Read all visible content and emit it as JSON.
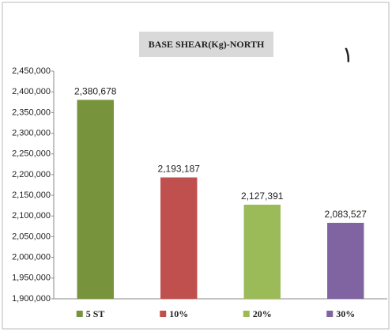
{
  "chart_data": {
    "type": "bar",
    "title": "BASE SHEAR(Kg)-NORTH",
    "annotation": "١",
    "categories": [
      "5 ST",
      "10%",
      "20%",
      "30%"
    ],
    "values": [
      2380678,
      2193187,
      2127391,
      2083527
    ],
    "value_labels": [
      "2,380,678",
      "2,193,187",
      "2,127,391",
      "2,083,527"
    ],
    "colors": [
      "#77933c",
      "#c0504d",
      "#9bbb59",
      "#8064a2"
    ],
    "ylim": [
      1900000,
      2450000
    ],
    "yticks": [
      {
        "value": 1900000,
        "label": "1,900,000"
      },
      {
        "value": 1950000,
        "label": "1,950,000"
      },
      {
        "value": 2000000,
        "label": "2,000,000"
      },
      {
        "value": 2050000,
        "label": "2,050,000"
      },
      {
        "value": 2100000,
        "label": "2,100,000"
      },
      {
        "value": 2150000,
        "label": "2,150,000"
      },
      {
        "value": 2200000,
        "label": "2,200,000"
      },
      {
        "value": 2250000,
        "label": "2,250,000"
      },
      {
        "value": 2300000,
        "label": "2,300,000"
      },
      {
        "value": 2350000,
        "label": "2,350,000"
      },
      {
        "value": 2400000,
        "label": "2,400,000"
      },
      {
        "value": 2450000,
        "label": "2,450,000"
      }
    ],
    "legend": "bottom"
  }
}
